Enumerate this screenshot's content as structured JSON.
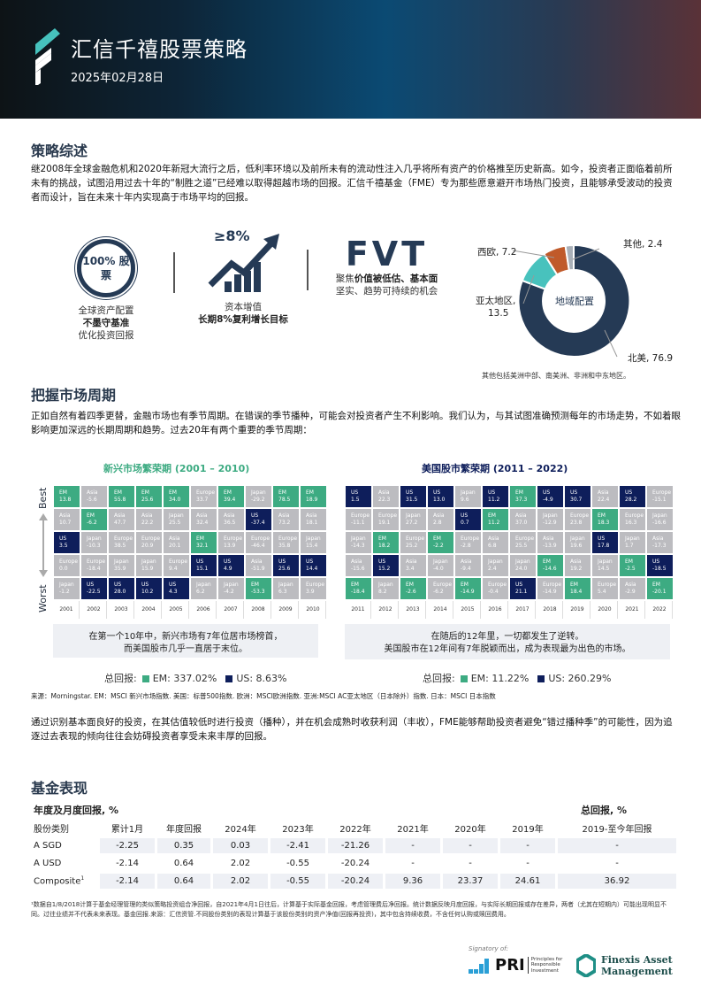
{
  "header": {
    "title": "汇信千禧股票策略",
    "date": "2025年02月28日"
  },
  "overview": {
    "title": "策略综述",
    "body": "继2008年全球金融危机和2020年新冠大流行之后，低利率环境以及前所未有的流动性注入几乎将所有资产的价格推至历史新高。如今，投资者正面临着前所未有的挑战，试图沿用过去十年的“制胜之道”已经难以取得超越市场的回报。汇信千禧基金（FME）专为那些愿意避开市场热门投资，且能够承受波动的投资者而设计，旨在未来十年内实现高于市场平均的回报。"
  },
  "pillars": [
    {
      "icon": "100-percent-equity-ring-icon",
      "badge_line1": "100% 股",
      "badge_line2": "票",
      "line1": "全球资产配置",
      "line2_bold": "不墨守基准",
      "line3": "优化投资回报"
    },
    {
      "icon": "growth-arrow-chart-icon",
      "badge": "≥8%",
      "line1": "资本增值",
      "line2_bold": "长期8%复利增长目标"
    },
    {
      "icon": "fvt-logo-icon",
      "badge": "FVT",
      "line1_pre": "聚焦",
      "line1_bold": "价值被低估、基本面",
      "line2": "坚实、趋势可持续的机会"
    }
  ],
  "allocation": {
    "center_label": "地域配置",
    "note": "其他包括美洲中部、南美洲、非洲和中东地区。",
    "slices": [
      {
        "label": "北美, 76.9",
        "value": 76.9,
        "color": "#253a55"
      },
      {
        "label": "亚太地区,",
        "label2": "13.5",
        "value": 13.5,
        "color": "#48c2bd"
      },
      {
        "label": "西欧, 7.2",
        "value": 7.2,
        "color": "#c05a2a"
      },
      {
        "label": "其他, 2.4",
        "value": 2.4,
        "color": "#a9b0b8"
      }
    ]
  },
  "cycles": {
    "title": "把握市场周期",
    "body": "正如自然有着四季更替，金融市场也有季节周期。在错误的季节播种，可能会对投资者产生不利影响。我们认为，与其试图准确预测每年的市场走势，不如着眼影响更加深远的长期周期和趋势。过去20年有两个重要的季节周期：",
    "axis_best": "Best",
    "axis_worst": "Worst",
    "left": {
      "title_accent": "新兴市场",
      "title_rest": "繁荣期 (2001 – 2010)",
      "years": [
        "2001",
        "2002",
        "2003",
        "2004",
        "2005",
        "2006",
        "2007",
        "2008",
        "2009",
        "2010"
      ],
      "rows": [
        [
          [
            "EM",
            "13.8"
          ],
          [
            "Asia",
            "-5.6"
          ],
          [
            "EM",
            "55.8"
          ],
          [
            "EM",
            "25.6"
          ],
          [
            "EM",
            "34.0"
          ],
          [
            "Europe",
            "33.7"
          ],
          [
            "EM",
            "39.4"
          ],
          [
            "Japan",
            "-29.2"
          ],
          [
            "EM",
            "78.5"
          ],
          [
            "EM",
            "18.9"
          ]
        ],
        [
          [
            "Asia",
            "10.7"
          ],
          [
            "EM",
            "-6.2"
          ],
          [
            "Asia",
            "47.7"
          ],
          [
            "Asia",
            "22.2"
          ],
          [
            "Japan",
            "25.5"
          ],
          [
            "Asia",
            "32.4"
          ],
          [
            "Asia",
            "36.5"
          ],
          [
            "US",
            "-37.4"
          ],
          [
            "Asia",
            "73.2"
          ],
          [
            "Asia",
            "18.1"
          ]
        ],
        [
          [
            "US",
            "3.5"
          ],
          [
            "Japan",
            "-10.3"
          ],
          [
            "Europe",
            "38.5"
          ],
          [
            "Europe",
            "20.9"
          ],
          [
            "Asia",
            "20.1"
          ],
          [
            "EM",
            "32.1"
          ],
          [
            "Europe",
            "13.9"
          ],
          [
            "Europe",
            "-46.4"
          ],
          [
            "Europe",
            "35.8"
          ],
          [
            "Japan",
            "15.4"
          ]
        ],
        [
          [
            "Europe",
            "0.0"
          ],
          [
            "Europe",
            "-18.4"
          ],
          [
            "Japan",
            "35.9"
          ],
          [
            "Japan",
            "15.9"
          ],
          [
            "Europe",
            "9.4"
          ],
          [
            "US",
            "15.1"
          ],
          [
            "US",
            "4.9"
          ],
          [
            "Asia",
            "-51.9"
          ],
          [
            "US",
            "25.6"
          ],
          [
            "US",
            "14.4"
          ]
        ],
        [
          [
            "Japan",
            "-1.2"
          ],
          [
            "US",
            "-22.5"
          ],
          [
            "US",
            "28.0"
          ],
          [
            "US",
            "10.2"
          ],
          [
            "US",
            "4.3"
          ],
          [
            "Japan",
            "6.2"
          ],
          [
            "Japan",
            "-4.2"
          ],
          [
            "EM",
            "-53.3"
          ],
          [
            "Japan",
            "6.3"
          ],
          [
            "Europe",
            "3.9"
          ]
        ]
      ],
      "callout_line1": "在第一个10年中，新兴市场有7年位居市场榜首，",
      "callout_line2": "而美国股市几乎一直居于末位。",
      "totals_label": "总回报:",
      "em_total": "EM: 337.02%",
      "us_total": "US: 8.63%"
    },
    "right": {
      "title": "美国股市繁荣期 (2011 – 2022)",
      "years": [
        "2011",
        "2012",
        "2013",
        "2014",
        "2015",
        "2016",
        "2017",
        "2018",
        "2019",
        "2020",
        "2021",
        "2022"
      ],
      "rows": [
        [
          [
            "US",
            "1.5"
          ],
          [
            "Asia",
            "22.3"
          ],
          [
            "US",
            "31.5"
          ],
          [
            "US",
            "13.0"
          ],
          [
            "Japan",
            "9.6"
          ],
          [
            "US",
            "11.2"
          ],
          [
            "EM",
            "37.3"
          ],
          [
            "US",
            "-4.9"
          ],
          [
            "US",
            "30.7"
          ],
          [
            "Asia",
            "22.4"
          ],
          [
            "US",
            "28.2"
          ],
          [
            "Europe",
            "-15.1"
          ]
        ],
        [
          [
            "Europe",
            "-11.1"
          ],
          [
            "Europe",
            "19.1"
          ],
          [
            "Japan",
            "27.2"
          ],
          [
            "Asia",
            "2.8"
          ],
          [
            "US",
            "0.7"
          ],
          [
            "EM",
            "11.2"
          ],
          [
            "Asia",
            "37.0"
          ],
          [
            "Japan",
            "-12.9"
          ],
          [
            "Europe",
            "23.8"
          ],
          [
            "EM",
            "18.3"
          ],
          [
            "Europe",
            "16.3"
          ],
          [
            "Japan",
            "-16.6"
          ]
        ],
        [
          [
            "Japan",
            "-14.3"
          ],
          [
            "EM",
            "18.2"
          ],
          [
            "Europe",
            "25.2"
          ],
          [
            "EM",
            "-2.2"
          ],
          [
            "Europe",
            "-2.8"
          ],
          [
            "Asia",
            "6.8"
          ],
          [
            "Europe",
            "25.5"
          ],
          [
            "Asia",
            "-13.9"
          ],
          [
            "Japan",
            "19.6"
          ],
          [
            "US",
            "17.8"
          ],
          [
            "Japan",
            "1.7"
          ],
          [
            "Asia",
            "-17.3"
          ]
        ],
        [
          [
            "Asia",
            "-15.6"
          ],
          [
            "US",
            "15.2"
          ],
          [
            "Asia",
            "3.4"
          ],
          [
            "Japan",
            "-4.0"
          ],
          [
            "Asia",
            "-9.4"
          ],
          [
            "Japan",
            "2.4"
          ],
          [
            "Japan",
            "24.0"
          ],
          [
            "EM",
            "-14.6"
          ],
          [
            "Asia",
            "19.2"
          ],
          [
            "Japan",
            "14.5"
          ],
          [
            "EM",
            "-2.5"
          ],
          [
            "US",
            "-18.5"
          ]
        ],
        [
          [
            "EM",
            "-18.4"
          ],
          [
            "Japan",
            "8.2"
          ],
          [
            "EM",
            "-2.6"
          ],
          [
            "Europe",
            "-6.2"
          ],
          [
            "EM",
            "-14.9"
          ],
          [
            "Europe",
            "-0.4"
          ],
          [
            "US",
            "21.1"
          ],
          [
            "Europe",
            "-14.9"
          ],
          [
            "EM",
            "18.4"
          ],
          [
            "Europe",
            "5.4"
          ],
          [
            "Asia",
            "-2.9"
          ],
          [
            "EM",
            "-20.1"
          ]
        ]
      ],
      "callout_line1": "在随后的12年里，一切都发生了逆转。",
      "callout_line2": "美国股市在12年间有7年脱颖而出，成为表现最为出色的市场。",
      "totals_label": "总回报:",
      "em_total": "EM: 11.22%",
      "us_total": "US: 260.29%"
    },
    "colors": {
      "EM": "#3dab82",
      "US": "#0e1e5b",
      "other": "#bcbcc0"
    },
    "source": "来源：Morningstar. EM：MSCI 新兴市场指数. 美国：标普500指数. 欧洲：MSCI欧洲指数. 亚洲:MSCI AC亚太地区（日本除外）指数. 日本：MSCI 日本指数",
    "closing": "通过识别基本面良好的投资，在其估值较低时进行投资（播种），并在机会成熟时收获利润（丰收），FME能够帮助投资者避免“错过播种季”的可能性，因为追逐过去表现的倾向往往会妨碍投资者享受未来丰厚的回报。"
  },
  "performance": {
    "title": "基金表现",
    "subtitle_left": "年度及月度回报, %",
    "subtitle_right": "总回报, %",
    "columns": [
      "股份类别",
      "累计1月",
      "年度回报",
      "2024年",
      "2023年",
      "2022年",
      "2021年",
      "2020年",
      "2019年",
      "2019-至今年回报"
    ],
    "rows": [
      {
        "name": "A SGD",
        "sup": "",
        "values": [
          "-2.25",
          "0.35",
          "0.03",
          "-2.41",
          "-21.26",
          "-",
          "-",
          "-",
          "-"
        ]
      },
      {
        "name": "A USD",
        "sup": "",
        "values": [
          "-2.14",
          "0.64",
          "2.02",
          "-0.55",
          "-20.24",
          "-",
          "-",
          "-",
          "-"
        ]
      },
      {
        "name": "Composite",
        "sup": "1",
        "values": [
          "-2.14",
          "0.64",
          "2.02",
          "-0.55",
          "-20.24",
          "9.36",
          "23.37",
          "24.61",
          "36.92"
        ]
      }
    ],
    "footnote": "¹数据自1/8/2018计算于基金经理管理的类似策略投资组合净回报，自2021年4月1日往后，计算基于实际基金回报，考虑管理费后净回报。统计数据反映月度回报，与实际长期回报或存在差异，两者（尤其在短期内）可能出现明显不同。过往业绩并不代表未来表现。基金回报.来源：汇信资管.不同股份类别的表现计算基于该股份类别的资产净值(回报再投资)，其中包含持续收费，不含任何认购或赎回费用。"
  },
  "footer": {
    "pri_signatory": "Signatory of:",
    "pri_mark": "PRI",
    "pri_text1": "Principles for",
    "pri_text2": "Responsible",
    "pri_text3": "Investment",
    "company_line1": "Finexis Asset",
    "company_line2": "Management"
  }
}
